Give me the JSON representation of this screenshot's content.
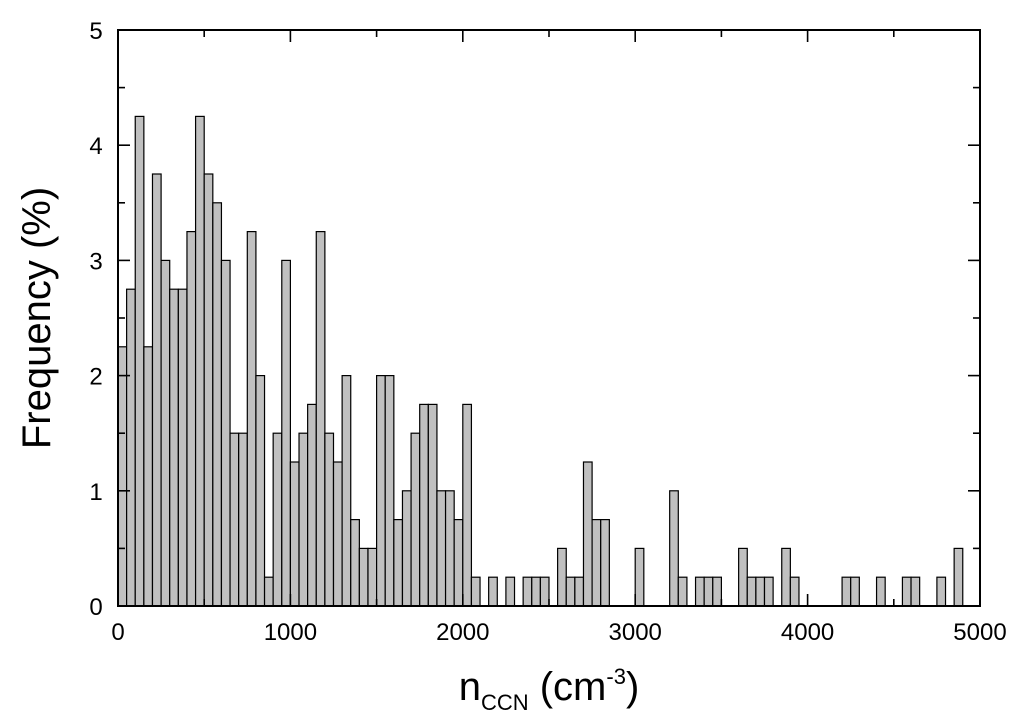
{
  "chart_data": {
    "type": "bar",
    "title": "",
    "xlabel": {
      "main": "n",
      "sub": "CCN",
      "unit_open": " (cm",
      "sup": "-3",
      "unit_close": ")"
    },
    "ylabel": "Frequency (%)",
    "xlim": [
      0,
      5000
    ],
    "ylim": [
      0,
      5
    ],
    "x_ticks": [
      0,
      1000,
      2000,
      3000,
      4000,
      5000
    ],
    "y_ticks": [
      0,
      1,
      2,
      3,
      4,
      5
    ],
    "bin_width": 50,
    "bin_starts": [
      0,
      50,
      100,
      150,
      200,
      250,
      300,
      350,
      400,
      450,
      500,
      550,
      600,
      650,
      700,
      750,
      800,
      850,
      900,
      950,
      1000,
      1050,
      1100,
      1150,
      1200,
      1250,
      1300,
      1350,
      1400,
      1450,
      1500,
      1550,
      1600,
      1650,
      1700,
      1750,
      1800,
      1850,
      1900,
      1950,
      2000,
      2050,
      2100,
      2150,
      2200,
      2250,
      2300,
      2350,
      2400,
      2450,
      2500,
      2550,
      2600,
      2650,
      2700,
      2750,
      2800,
      2850,
      2900,
      2950,
      3000,
      3050,
      3100,
      3150,
      3200,
      3250,
      3300,
      3350,
      3400,
      3450,
      3500,
      3550,
      3600,
      3650,
      3700,
      3750,
      3800,
      3850,
      3900,
      3950,
      4000,
      4050,
      4100,
      4150,
      4200,
      4250,
      4300,
      4350,
      4400,
      4450,
      4500,
      4550,
      4600,
      4650,
      4700,
      4750,
      4800,
      4850,
      4900,
      4950
    ],
    "values": [
      2.25,
      2.75,
      4.25,
      2.25,
      3.75,
      3.0,
      2.75,
      2.75,
      3.25,
      4.25,
      3.75,
      3.5,
      3.0,
      1.5,
      1.5,
      3.25,
      2.0,
      0.25,
      1.5,
      3.0,
      1.25,
      1.5,
      1.75,
      3.25,
      1.5,
      1.25,
      2.0,
      0.75,
      0.5,
      0.5,
      2.0,
      2.0,
      0.75,
      1.0,
      1.5,
      1.75,
      1.75,
      1.0,
      1.0,
      0.75,
      1.75,
      0.25,
      0,
      0.25,
      0,
      0.25,
      0,
      0.25,
      0.25,
      0.25,
      0,
      0.5,
      0.25,
      0.25,
      1.25,
      0.75,
      0.75,
      0,
      0,
      0,
      0.5,
      0,
      0,
      0,
      1.0,
      0.25,
      0,
      0.25,
      0.25,
      0.25,
      0,
      0,
      0.5,
      0.25,
      0.25,
      0.25,
      0,
      0.5,
      0.25,
      0,
      0,
      0,
      0,
      0,
      0.25,
      0.25,
      0,
      0,
      0.25,
      0,
      0,
      0.25,
      0.25,
      0,
      0,
      0.25,
      0,
      0.5,
      0,
      0
    ],
    "grid": false,
    "legend": "none",
    "colors": {
      "bar_fill": "#c0c0c0",
      "bar_edge": "#000000",
      "axis": "#000000"
    }
  }
}
